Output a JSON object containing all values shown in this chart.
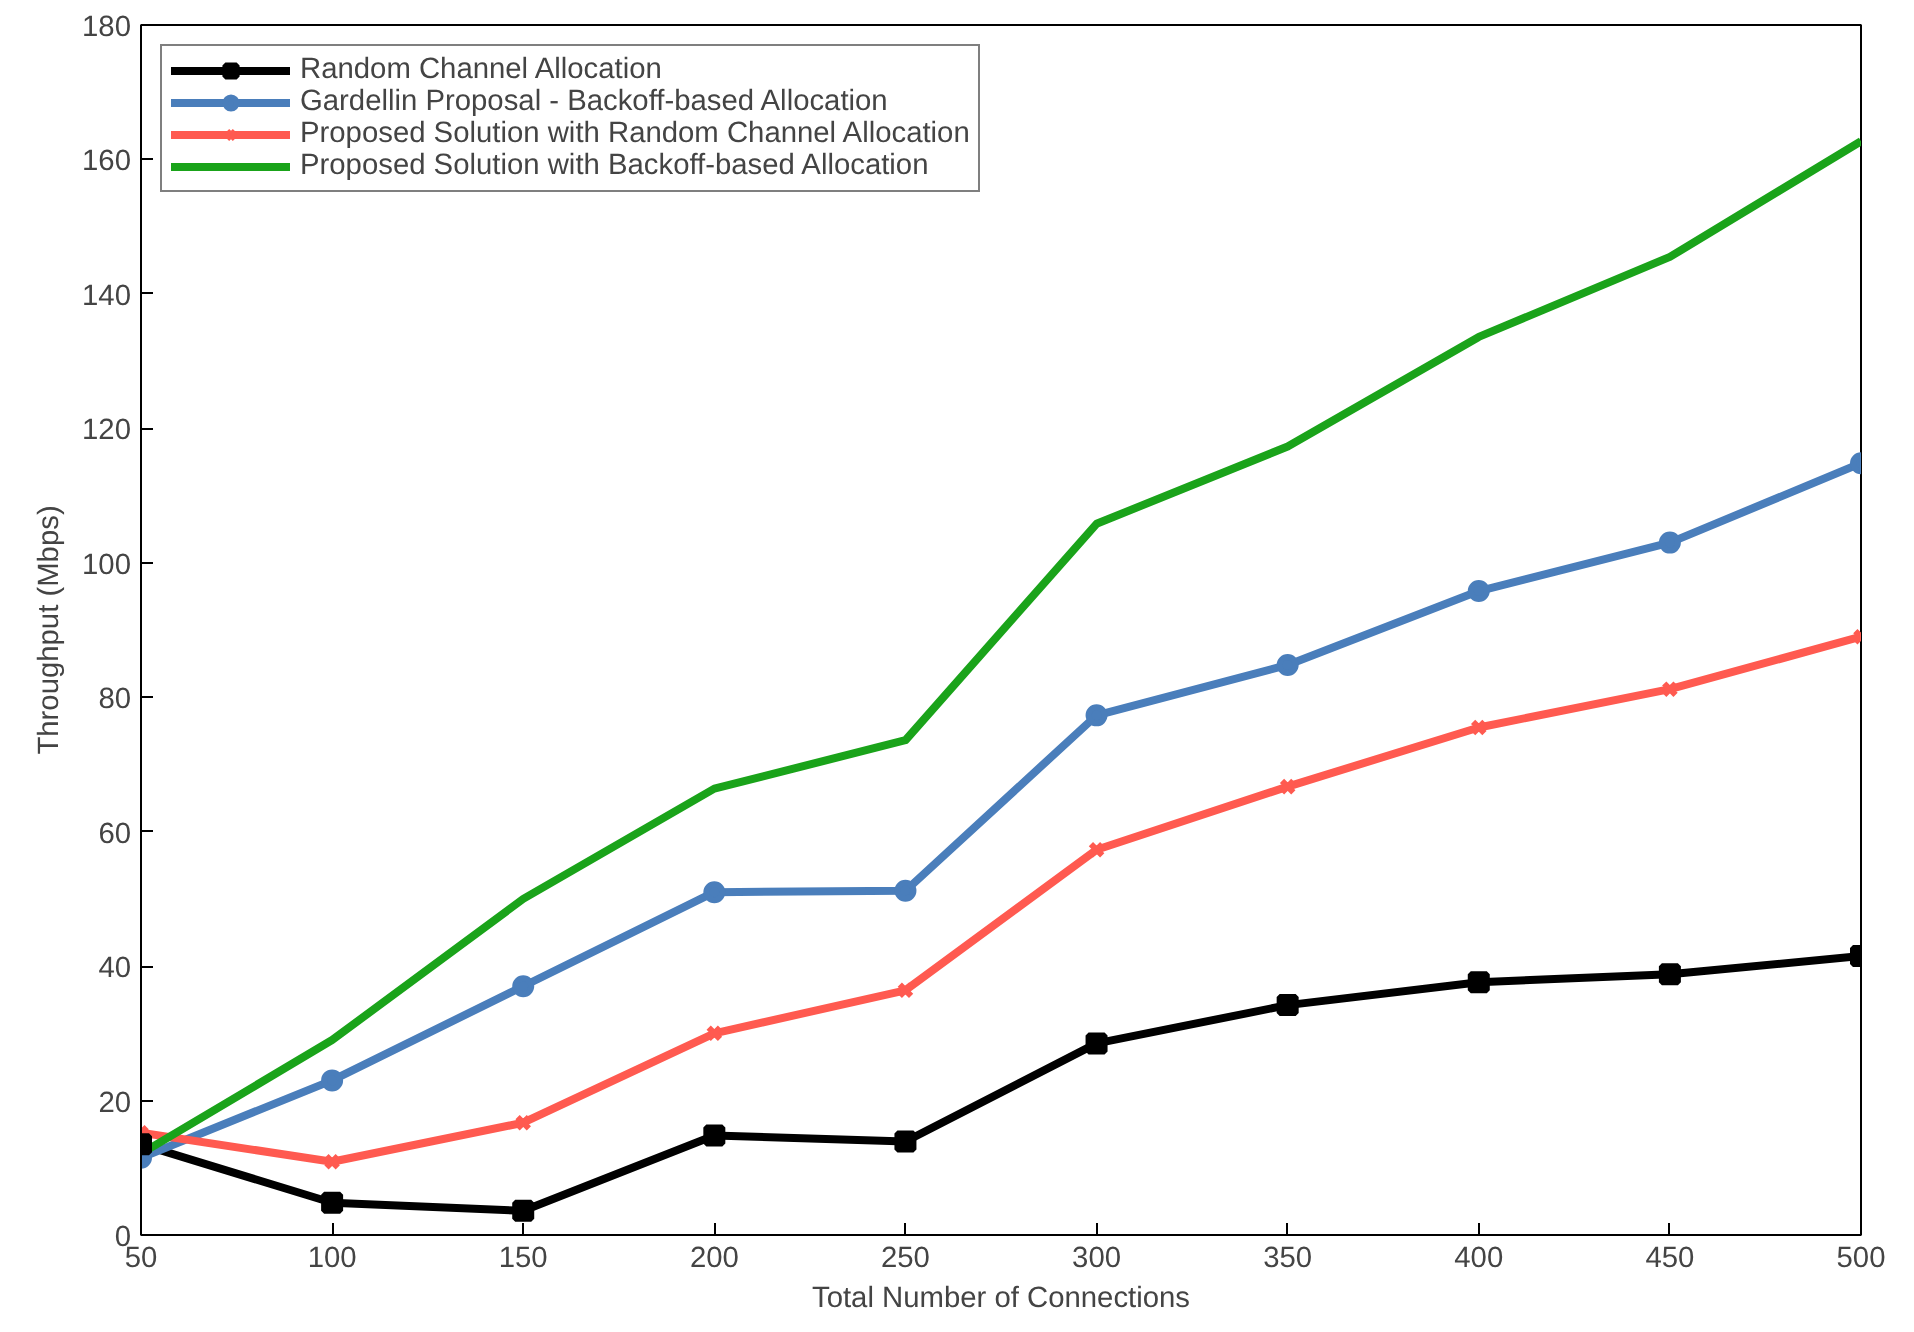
{
  "chart_data": {
    "type": "line",
    "xlabel": "Total Number of Connections",
    "ylabel": "Throughput (Mbps)",
    "x": [
      50,
      100,
      150,
      200,
      250,
      300,
      350,
      400,
      450,
      500
    ],
    "xlim": [
      50,
      500
    ],
    "xticks": [
      50,
      100,
      150,
      200,
      250,
      300,
      350,
      400,
      450,
      500
    ],
    "ylim": [
      0,
      180
    ],
    "yticks": [
      0,
      20,
      40,
      60,
      80,
      100,
      120,
      140,
      160,
      180
    ],
    "grid": false,
    "legend": "top left",
    "line_style": "solid",
    "series": [
      {
        "name": "Random Channel Allocation",
        "color": "#000000",
        "marker": "square",
        "values": [
          13.5,
          4.8,
          3.6,
          14.8,
          13.9,
          28.5,
          34.2,
          37.6,
          38.8,
          41.5
        ]
      },
      {
        "name": "Gardellin Proposal - Backoff-based Allocation",
        "color": "#4a7ebb",
        "marker": "circle",
        "values": [
          11.5,
          23,
          37,
          51,
          51.2,
          77.3,
          84.8,
          95.8,
          103,
          114.8
        ]
      },
      {
        "name": "Proposed Solution with Random Channel Allocation",
        "color": "#ff5a50",
        "marker": "cross",
        "values": [
          15.2,
          10.9,
          16.7,
          30,
          36.4,
          57.3,
          66.7,
          75.5,
          81.2,
          89
        ]
      },
      {
        "name": "Proposed Solution with Backoff-based Allocation",
        "color": "#1aa31a",
        "marker": "none",
        "values": [
          12.1,
          29,
          50,
          66.4,
          73.6,
          105.8,
          117.3,
          133.6,
          145.5,
          162.7
        ]
      }
    ]
  }
}
